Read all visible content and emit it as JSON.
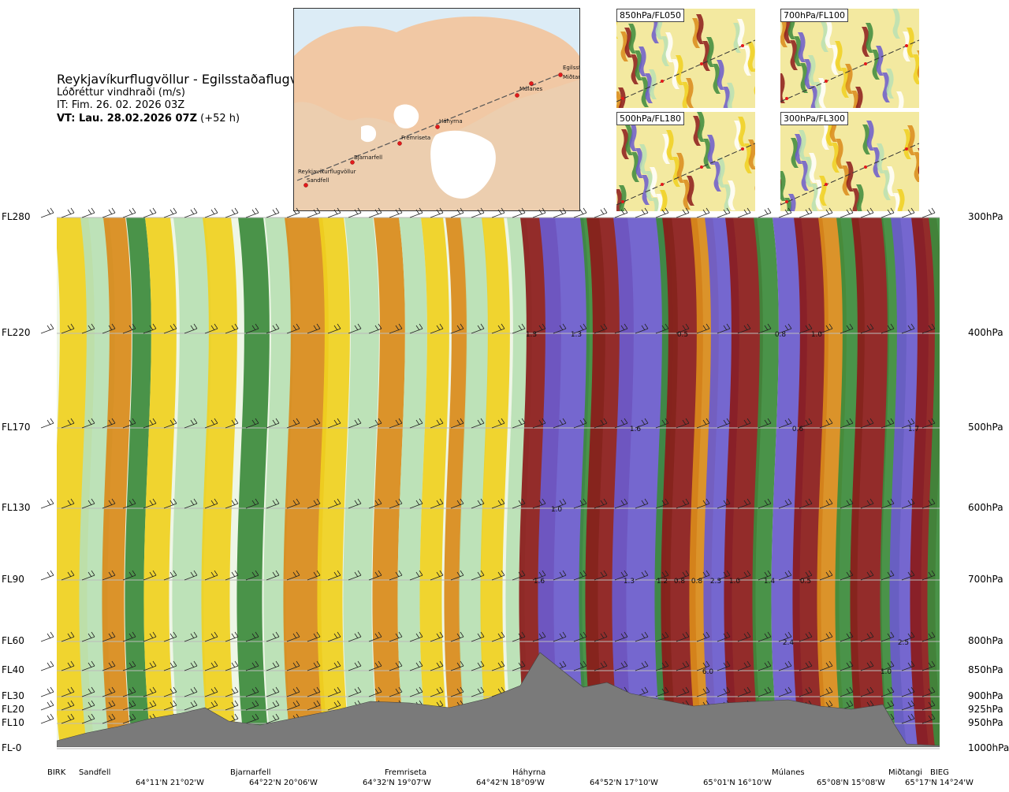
{
  "header": {
    "title": "Reykjavíkurflugvöllur - Egilsstaðaflugvöllur",
    "subtitle": "Lóðréttur vindhraði (m/s)",
    "it": "IT: Fim. 26. 02. 2026 03Z",
    "vt_bold": "VT: Lau. 28.02.2026 07Z",
    "vt_rest": " (+52 h)"
  },
  "map": {
    "stations": [
      "Reykjavíkurflugvöllur",
      "Sandfell",
      "Bjarnarfell",
      "Fremriseta",
      "Háhyrna",
      "Múlanes",
      "Miðtangi",
      "Egilsst"
    ]
  },
  "panels": [
    "850hPa/FL050",
    "700hPa/FL100",
    "500hPa/FL180",
    "300hPa/FL300"
  ],
  "chart_data": {
    "type": "heatmap",
    "title": "Lóðréttur vindhraði (m/s)",
    "left_axis_labels": [
      "FL280",
      "FL220",
      "FL170",
      "FL130",
      "FL90",
      "FL60",
      "FL40",
      "FL30",
      "FL20",
      "FL10",
      "FL-0"
    ],
    "right_axis_labels": [
      "300hPa",
      "400hPa",
      "500hPa",
      "600hPa",
      "700hPa",
      "800hPa",
      "850hPa",
      "900hPa",
      "925hPa",
      "950hPa",
      "1000hPa"
    ],
    "locations": [
      "BIRK",
      "Sandfell",
      "Bjarnarfell",
      "Fremriseta",
      "Háhyrna",
      "Múlanes",
      "Miðtangi",
      "BIEG"
    ],
    "coordinates": [
      "64°11'N 21°02'W",
      "64°22'N 20°06'W",
      "64°32'N 19°07'W",
      "64°42'N 18°09'W",
      "64°52'N 17°10'W",
      "65°01'N 16°10'W",
      "65°08'N 15°08'W",
      "65°17'N 14°24'W"
    ],
    "annotations": [
      {
        "level": "FL220",
        "labels": [
          "1.3",
          "1.3",
          "0.5",
          "0.8",
          "1.0"
        ]
      },
      {
        "level": "FL170",
        "labels": [
          "1.6",
          "0.6",
          "1.7"
        ]
      },
      {
        "level": "FL130",
        "labels": [
          "1.0"
        ]
      },
      {
        "level": "FL90",
        "labels": [
          "1.6",
          "1.3",
          "1.2",
          "0.8",
          "0.8",
          "2.3",
          "1.0",
          "1.4",
          "0.5"
        ]
      },
      {
        "level": "FL60",
        "labels": [
          "2.4",
          "2.5"
        ]
      },
      {
        "level": "FL40",
        "labels": [
          "6.0",
          "1.0"
        ]
      }
    ],
    "colors": {
      "strong_down": "#6a5acd",
      "down": "#3c8a3c",
      "weak_down": "#b9e0b4",
      "neutral": "#f4f4d0",
      "weak_up": "#f0d020",
      "up": "#d98a1a",
      "strong_up": "#8b1a1a",
      "terrain": "#7a7a7a"
    }
  }
}
